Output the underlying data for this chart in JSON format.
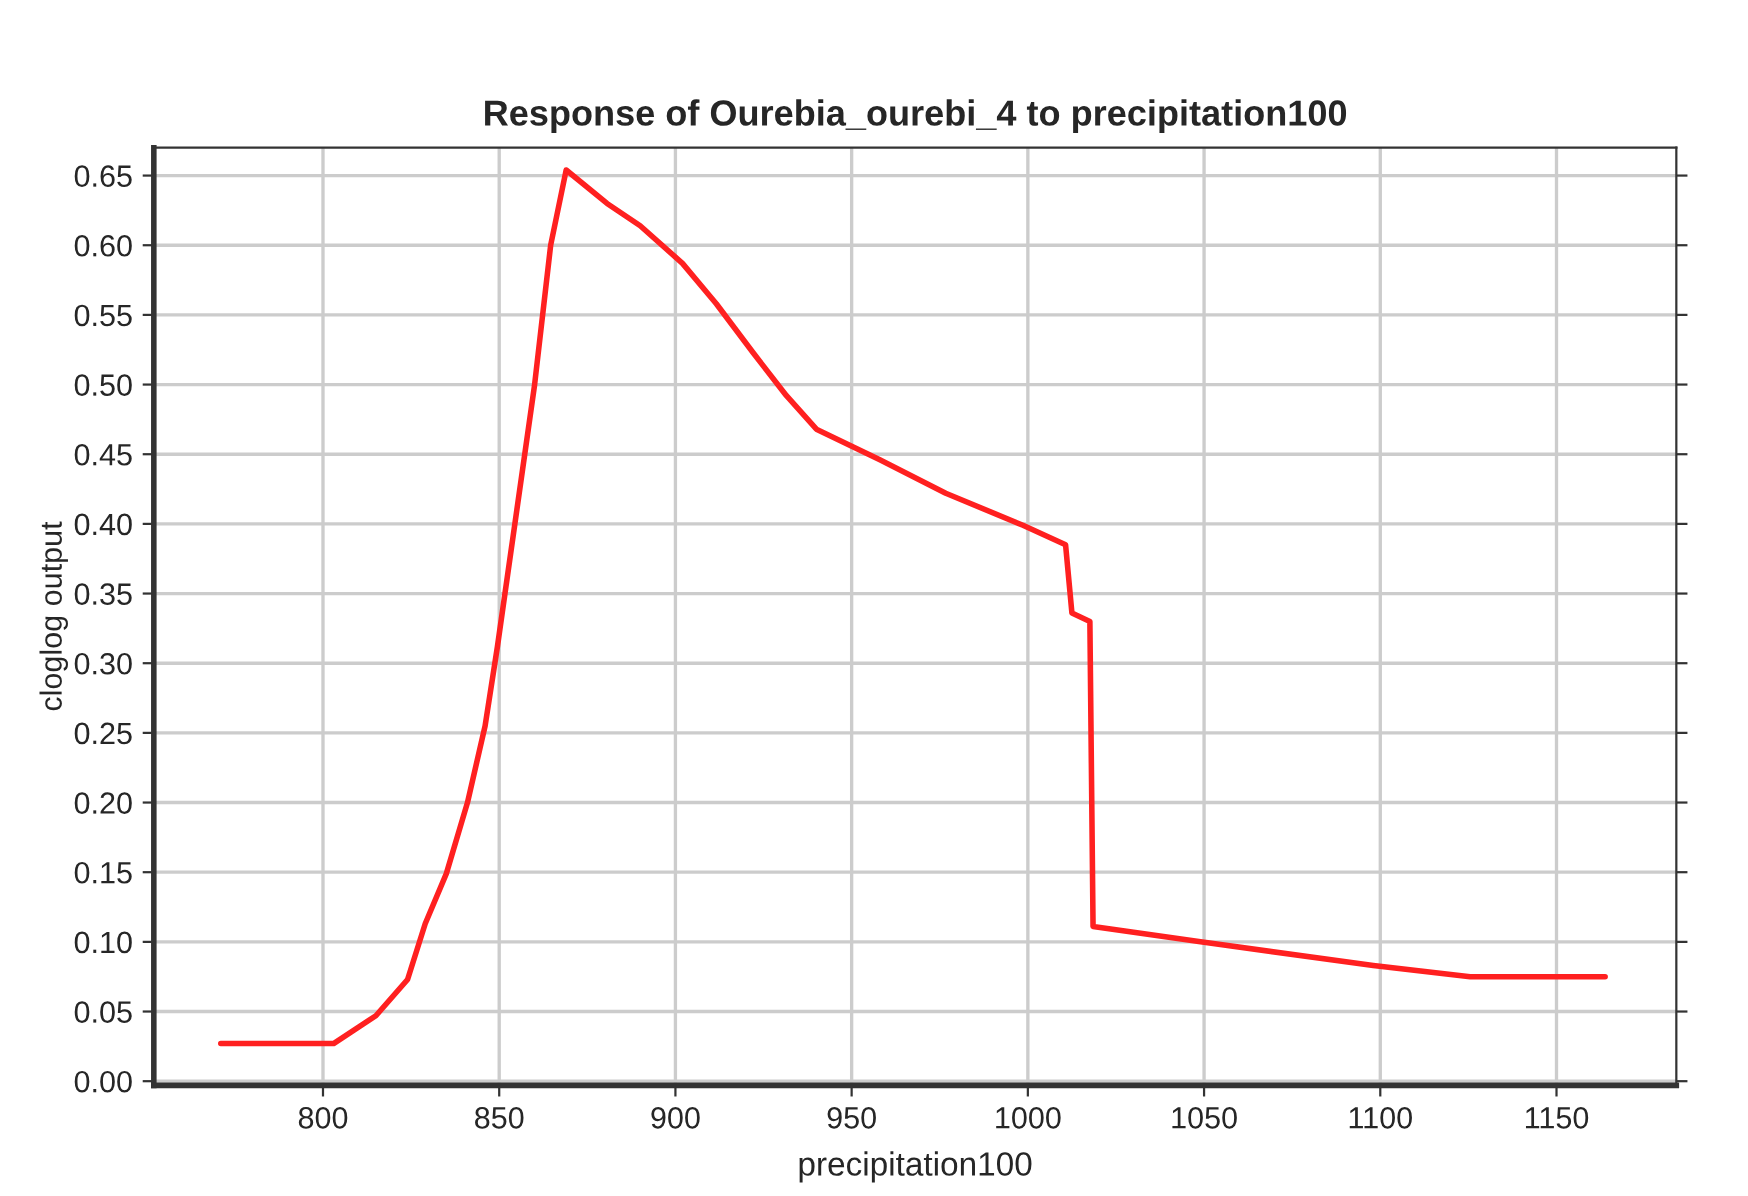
{
  "chart_data": {
    "type": "line",
    "title": "Response of Ourebia_ourebi_4 to precipitation100",
    "xlabel": "precipitation100",
    "ylabel": "cloglog output",
    "series": [
      {
        "color": "#ff2020",
        "x": [
          771,
          801,
          803,
          815,
          824,
          829,
          835,
          841,
          846,
          849.5,
          860,
          864.6,
          869,
          880.6,
          890,
          902,
          911.6,
          922,
          931.5,
          940,
          958,
          976.7,
          998.6,
          1010.7,
          1012.5,
          1017.6,
          1018.5,
          1049,
          1098,
          1125.5,
          1163.8
        ],
        "values": [
          0.027,
          0.027,
          0.027,
          0.047,
          0.073,
          0.113,
          0.149,
          0.2,
          0.255,
          0.312,
          0.499,
          0.6,
          0.654,
          0.63,
          0.614,
          0.587,
          0.558,
          0.523,
          0.492,
          0.468,
          0.446,
          0.422,
          0.399,
          0.385,
          0.336,
          0.33,
          0.111,
          0.1,
          0.083,
          0.075,
          0.075
        ]
      }
    ],
    "xlim": [
      752,
      1184
    ],
    "ylim": [
      -0.003,
      0.67
    ],
    "xticks": [
      800,
      850,
      900,
      950,
      1000,
      1050,
      1100,
      1150
    ],
    "yticks": [
      {
        "value": 0,
        "label": "0.00"
      },
      0.05,
      {
        "value": 0.1,
        "label": "0.10"
      },
      0.15,
      {
        "value": 0.2,
        "label": "0.20"
      },
      0.25,
      {
        "value": 0.3,
        "label": "0.30"
      },
      0.35,
      {
        "value": 0.4,
        "label": "0.40"
      },
      0.45,
      {
        "value": 0.5,
        "label": "0.50"
      },
      0.55,
      {
        "value": 0.6,
        "label": "0.60"
      },
      0.65
    ],
    "grid": true,
    "line_style": "solid",
    "marker": "none"
  }
}
